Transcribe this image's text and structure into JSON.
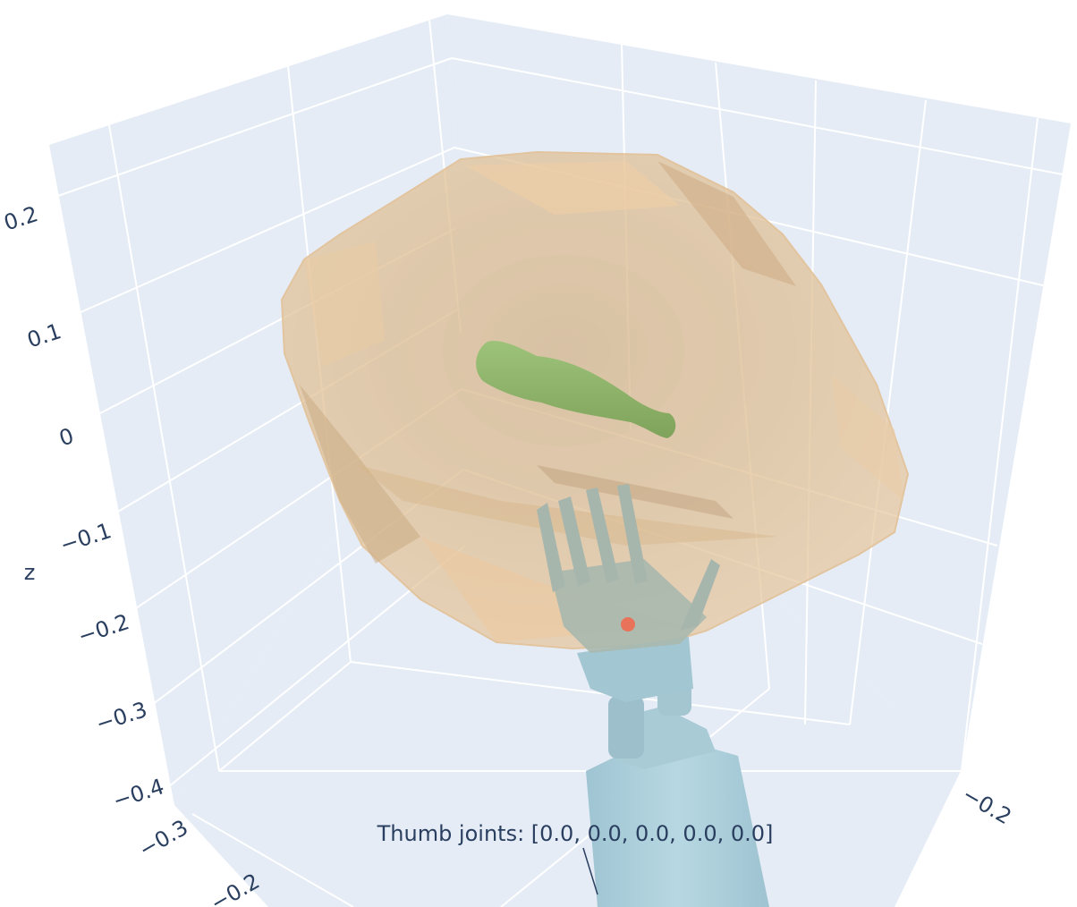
{
  "chart_data": {
    "type": "scatter3d",
    "title": "",
    "axes": {
      "z": {
        "label": "z",
        "ticks": [
          "0.2",
          "0.1",
          "0",
          "−0.1",
          "−0.2",
          "−0.3",
          "−0.4"
        ]
      },
      "x": {
        "label": "",
        "ticks": [
          "−0.3",
          "−0.2"
        ]
      },
      "y": {
        "label": "",
        "ticks": [
          "−0.2"
        ]
      }
    },
    "grid": true,
    "background_color": "#e5ecf6",
    "gridline_color": "#ffffff",
    "traces": [
      {
        "name": "",
        "kind": "mesh",
        "color": "#e8c49a",
        "opacity": 0.75
      },
      {
        "name": "",
        "kind": "mesh",
        "color": "#8fb06a",
        "opacity": 1.0
      },
      {
        "name": "",
        "kind": "mesh",
        "color": "#a9c9d4",
        "opacity": 1.0
      },
      {
        "name": "",
        "kind": "marker",
        "color": "#e8735a",
        "opacity": 1.0
      }
    ],
    "annotations": [
      {
        "text": "Thumb joints: [0.0, 0.0, 0.0, 0.0, 0.0]",
        "arrow": true
      }
    ]
  }
}
